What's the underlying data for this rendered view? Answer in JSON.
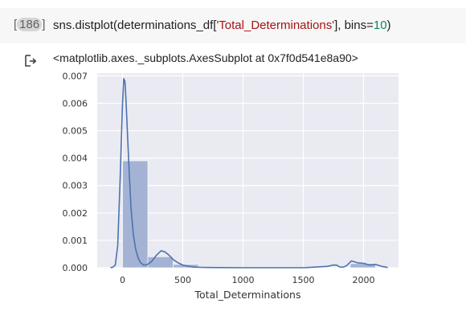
{
  "cell": {
    "execution_count": "186",
    "code": {
      "prefix": "sns.distplot(determinations_df[",
      "string_arg": "'Total_Determinations'",
      "middle": "], bins=",
      "bins": "10",
      "suffix": ")"
    }
  },
  "output": {
    "icon": "output-arrow-icon",
    "text": "<matplotlib.axes._subplots.AxesSubplot at 0x7f0d541e8a90>"
  },
  "chart_data": {
    "type": "bar",
    "style": "seaborn distplot (histogram + KDE)",
    "xlabel": "Total_Determinations",
    "ylabel": "",
    "xlim": [
      -210,
      2290
    ],
    "ylim": [
      0,
      0.0071
    ],
    "grid": true,
    "x_ticks": [
      "0",
      "500",
      "1000",
      "1500",
      "2000"
    ],
    "y_ticks": [
      "0.000",
      "0.001",
      "0.002",
      "0.003",
      "0.004",
      "0.005",
      "0.006",
      "0.007"
    ],
    "x_tick_values": [
      0,
      500,
      1000,
      1500,
      2000
    ],
    "y_tick_values": [
      0,
      0.001,
      0.002,
      0.003,
      0.004,
      0.005,
      0.006,
      0.007
    ],
    "bins": [
      {
        "x0": 0,
        "x1": 210,
        "density": 0.0039
      },
      {
        "x0": 210,
        "x1": 420,
        "density": 0.0004
      },
      {
        "x0": 420,
        "x1": 630,
        "density": 0.00012
      },
      {
        "x0": 630,
        "x1": 840,
        "density": 0.0
      },
      {
        "x0": 840,
        "x1": 1050,
        "density": 0.0
      },
      {
        "x0": 1050,
        "x1": 1260,
        "density": 0.0
      },
      {
        "x0": 1260,
        "x1": 1470,
        "density": 0.0
      },
      {
        "x0": 1470,
        "x1": 1680,
        "density": 0.0
      },
      {
        "x0": 1680,
        "x1": 1890,
        "density": 0.0
      },
      {
        "x0": 1890,
        "x1": 2100,
        "density": 0.00015
      }
    ],
    "kde": {
      "x": [
        -100,
        -80,
        -60,
        -40,
        -20,
        0,
        10,
        20,
        30,
        40,
        55,
        70,
        90,
        110,
        130,
        150,
        175,
        200,
        240,
        280,
        320,
        350,
        380,
        420,
        460,
        500,
        550,
        600,
        700,
        800,
        1000,
        1200,
        1500,
        1700,
        1750,
        1780,
        1800,
        1830,
        1860,
        1900,
        1950,
        2000,
        2050,
        2100,
        2150,
        2200
      ],
      "y": [
        0.0,
        2e-05,
        0.0001,
        0.0008,
        0.0032,
        0.006,
        0.0069,
        0.0068,
        0.006,
        0.005,
        0.0035,
        0.0022,
        0.0012,
        0.00065,
        0.00035,
        0.00018,
        0.0001,
        0.0001,
        0.00022,
        0.00045,
        0.00062,
        0.00058,
        0.00048,
        0.0003,
        0.00018,
        0.0001,
        5e-05,
        2e-05,
        1e-05,
        5e-06,
        0.0,
        0.0,
        0.0,
        5e-05,
        0.0001,
        9e-05,
        3e-05,
        2e-05,
        8e-05,
        0.00025,
        0.00018,
        0.00016,
        0.0001,
        0.00012,
        5e-05,
        1e-05
      ]
    }
  },
  "colors": {
    "axes_bg": "#eaeaf2",
    "grid": "#ffffff",
    "bar_fill": "#a4b3d4",
    "kde_line": "#4c72b0",
    "cell_bg": "#f7f7f7"
  }
}
